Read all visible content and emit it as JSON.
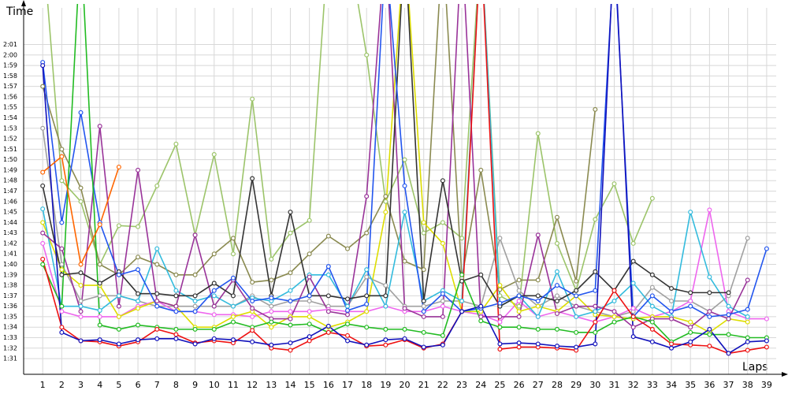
{
  "chart_data": {
    "type": "line",
    "ylabel": "Time",
    "xlabel": "Laps",
    "x": [
      1,
      2,
      3,
      4,
      5,
      6,
      7,
      8,
      9,
      10,
      11,
      12,
      13,
      14,
      15,
      16,
      17,
      18,
      19,
      20,
      21,
      22,
      23,
      24,
      25,
      26,
      27,
      28,
      29,
      30,
      31,
      32,
      33,
      34,
      35,
      36,
      37,
      38,
      39
    ],
    "xlim": [
      0,
      39.5
    ],
    "ylim": [
      89.5,
      124.5
    ],
    "yticks": [
      {
        "value": 91,
        "label": "1:31"
      },
      {
        "value": 92,
        "label": "1:32"
      },
      {
        "value": 93,
        "label": "1:33"
      },
      {
        "value": 94,
        "label": "1:34"
      },
      {
        "value": 95,
        "label": "1:35"
      },
      {
        "value": 96,
        "label": "1:36"
      },
      {
        "value": 97,
        "label": "1:37"
      },
      {
        "value": 98,
        "label": "1:38"
      },
      {
        "value": 99,
        "label": "1:39"
      },
      {
        "value": 100,
        "label": "1:40"
      },
      {
        "value": 101,
        "label": "1:41"
      },
      {
        "value": 102,
        "label": "1:42"
      },
      {
        "value": 103,
        "label": "1:43"
      },
      {
        "value": 104,
        "label": "1:44"
      },
      {
        "value": 105,
        "label": "1:45"
      },
      {
        "value": 106,
        "label": "1:46"
      },
      {
        "value": 107,
        "label": "1:47"
      },
      {
        "value": 108,
        "label": "1:48"
      },
      {
        "value": 109,
        "label": "1:49"
      },
      {
        "value": 110,
        "label": "1:50"
      },
      {
        "value": 111,
        "label": "1:51"
      },
      {
        "value": 112,
        "label": "1:52"
      },
      {
        "value": 113,
        "label": "1:53"
      },
      {
        "value": 114,
        "label": "1:54"
      },
      {
        "value": 115,
        "label": "1:55"
      },
      {
        "value": 116,
        "label": "1:56"
      },
      {
        "value": 117,
        "label": "1:57"
      },
      {
        "value": 118,
        "label": "1:58"
      },
      {
        "value": 119,
        "label": "1:59"
      },
      {
        "value": 120,
        "label": "2:00"
      },
      {
        "value": 121,
        "label": "2:01"
      }
    ],
    "grid": true,
    "series": [
      {
        "color": "#9cc46a",
        "values": [
          131,
          108,
          106,
          100,
          103.7,
          103.6,
          107.5,
          111.5,
          102.8,
          110.5,
          101,
          115.8,
          100.5,
          103,
          104.2,
          131,
          131,
          120,
          106,
          110,
          103,
          104,
          102.5,
          131,
          97,
          96,
          112.5,
          102,
          97.5,
          104.3,
          107.7,
          102,
          106.3,
          null,
          null,
          null,
          null,
          null,
          null
        ]
      },
      {
        "color": "#8a8a50",
        "values": [
          117,
          111,
          107.3,
          100,
          99,
          100.7,
          100,
          99,
          99,
          101,
          102.5,
          98.3,
          98.5,
          99.2,
          101,
          102.7,
          101.5,
          103,
          106.5,
          100.3,
          99.5,
          131,
          98.7,
          109,
          97.6,
          98.5,
          98.5,
          104.5,
          98.4,
          114.8,
          null,
          null,
          null,
          null,
          null,
          null,
          null,
          null,
          null
        ]
      },
      {
        "color": "#a0a0a0",
        "values": [
          113,
          100,
          96.5,
          97,
          97,
          96.5,
          96,
          96,
          96,
          96,
          96,
          97,
          96,
          96.5,
          96.5,
          96,
          96,
          98.8,
          98,
          96,
          96,
          96.5,
          96.5,
          96,
          102.5,
          97.5,
          96,
          97,
          96,
          95.5,
          95,
          95.5,
          97.8,
          96.5,
          96.5,
          95.5,
          97,
          102.5,
          null
        ]
      },
      {
        "color": "#ee66ee",
        "values": [
          102,
          95.5,
          95,
          95,
          95,
          96,
          96.5,
          95.5,
          95.5,
          95.2,
          95.2,
          95,
          95.5,
          95.5,
          95.5,
          95.7,
          95.5,
          95.5,
          96,
          95.5,
          95.5,
          96,
          95.5,
          95.2,
          94.5,
          96.5,
          95,
          95.5,
          95,
          94.5,
          95,
          95.8,
          95,
          95.5,
          96.5,
          105.2,
          95.5,
          94.8,
          94.8
        ]
      },
      {
        "color": "#dddd00",
        "values": [
          104,
          99.5,
          98,
          98,
          95,
          95.8,
          96.5,
          96,
          94,
          94,
          95,
          95.5,
          94,
          95,
          95,
          94,
          94.5,
          95.5,
          105,
          131,
          104,
          102,
          95.5,
          95.5,
          98,
          95.5,
          96,
          95.5,
          97,
          95.2,
          95,
          94.8,
          95,
          95,
          94.5,
          93.5,
          94.8,
          94.5,
          null
        ]
      },
      {
        "color": "#33bbdd",
        "values": [
          105.3,
          96,
          96,
          95.6,
          97,
          96.5,
          101.5,
          97.5,
          96.5,
          97,
          96,
          96.8,
          96.5,
          97.5,
          99,
          99,
          96,
          99.5,
          96,
          105,
          96.5,
          97.5,
          96.5,
          131,
          96,
          97,
          95,
          99.3,
          95,
          95.5,
          96.5,
          98.2,
          96,
          95,
          105,
          98.8,
          96,
          95,
          null
        ]
      },
      {
        "color": "#993399",
        "values": [
          103,
          101.5,
          95.5,
          113.2,
          96,
          109,
          96.5,
          96,
          102.8,
          96,
          98.5,
          95.8,
          94.8,
          94.8,
          98.8,
          95.5,
          95.2,
          106.5,
          131,
          95.8,
          95,
          95,
          131,
          95,
          95,
          95,
          102.8,
          95.3,
          96,
          96,
          95.5,
          94,
          94.8,
          94.8,
          94,
          95.5,
          94.8,
          98.5,
          null
        ]
      },
      {
        "color": "#333333",
        "values": [
          107.5,
          99,
          99.2,
          98.2,
          99.3,
          97.2,
          97.2,
          97,
          97,
          98.2,
          97,
          108.2,
          97,
          105,
          97,
          97,
          96.7,
          97,
          97,
          131,
          96.5,
          108,
          98.4,
          99,
          96,
          97,
          97,
          96.5,
          97.5,
          99.3,
          97.5,
          100.3,
          99,
          97.7,
          97.3,
          97.3,
          97.3,
          null,
          null
        ]
      },
      {
        "color": "#2255ee",
        "values": [
          119.3,
          104,
          114.5,
          104,
          99,
          99.5,
          96,
          95.5,
          95.5,
          97.5,
          98.7,
          96.5,
          96.8,
          96.5,
          97,
          99.8,
          95.6,
          96.2,
          130,
          107.5,
          95.5,
          97.2,
          95.5,
          95.8,
          96.3,
          97,
          96.5,
          98,
          97,
          97.5,
          130,
          95,
          97,
          95.5,
          96,
          95,
          95.2,
          95.7,
          101.5
        ]
      },
      {
        "color": "#22bb22",
        "values": [
          100,
          96,
          131,
          94.2,
          93.8,
          94.2,
          94,
          93.8,
          93.8,
          93.8,
          94.5,
          94,
          94.5,
          94.2,
          94.3,
          93.5,
          94.3,
          94,
          93.8,
          93.8,
          93.5,
          93.2,
          99,
          94.6,
          94,
          94,
          93.8,
          93.8,
          93.5,
          93.5,
          94.5,
          95,
          94.5,
          92.6,
          93.5,
          93.3,
          93.3,
          93,
          93
        ]
      },
      {
        "color": "#ff6600",
        "values": [
          108.8,
          110.3,
          100,
          103.8,
          109.3,
          null,
          null,
          null,
          null,
          null,
          null,
          null,
          null,
          null,
          null,
          null,
          null,
          null,
          null,
          null,
          null,
          null,
          null,
          null,
          null,
          null,
          null,
          null,
          null,
          null,
          null,
          null,
          null,
          null,
          null,
          null,
          null,
          null,
          null
        ]
      },
      {
        "color": "#ee1111",
        "values": [
          100.5,
          94,
          92.7,
          92.6,
          92.2,
          92.6,
          93.8,
          93.3,
          92.5,
          92.7,
          92.5,
          93.7,
          92,
          91.8,
          92.7,
          93.5,
          93.2,
          92.2,
          92.3,
          92.8,
          92,
          92.4,
          95.5,
          131,
          91.9,
          92.1,
          92.1,
          92,
          91.8,
          94.5,
          97.5,
          95,
          93.8,
          92.4,
          92.3,
          92.2,
          91.5,
          91.8,
          92.1
        ]
      },
      {
        "color": "#1111bb",
        "values": [
          119,
          93.5,
          92.7,
          92.8,
          92.4,
          92.8,
          92.9,
          92.9,
          92.4,
          92.9,
          92.8,
          92.6,
          92.3,
          92.5,
          93.1,
          94.1,
          92.7,
          92.3,
          92.8,
          92.9,
          92.1,
          92.3,
          95.5,
          96,
          92.4,
          92.5,
          92.4,
          92.2,
          92.1,
          92.4,
          131,
          93.1,
          92.6,
          92,
          92.6,
          93.8,
          91.5,
          92.6,
          92.7
        ]
      }
    ]
  }
}
